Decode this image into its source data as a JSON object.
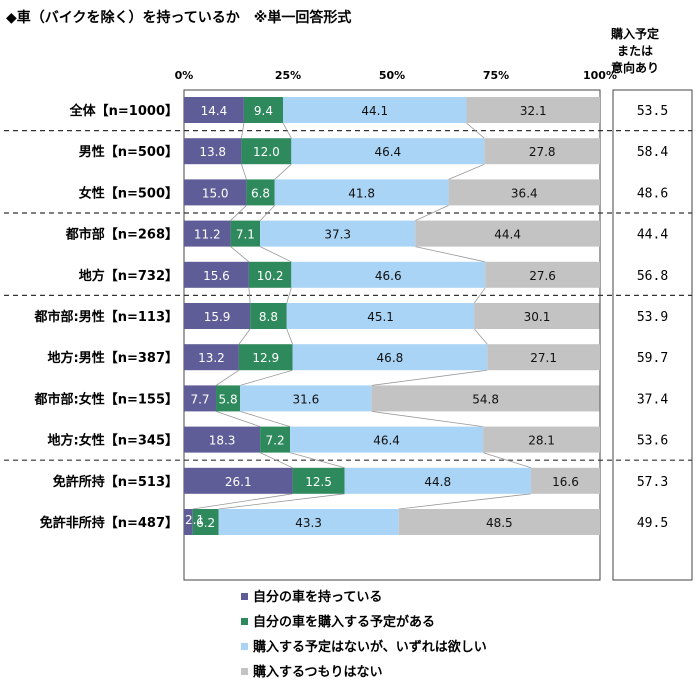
{
  "chart_data": {
    "type": "bar",
    "stacked": true,
    "orientation": "horizontal",
    "title": "◆車（バイクを除く）を持っているか　※単一回答形式",
    "xlim": [
      0,
      100
    ],
    "x_ticks": [
      "0%",
      "25%",
      "50%",
      "75%",
      "100%"
    ],
    "side_header": [
      "購入予定",
      "または",
      "意向あり"
    ],
    "categories": [
      "全体【n=1000】",
      "男性【n=500】",
      "女性【n=500】",
      "都市部【n=268】",
      "地方【n=732】",
      "都市部:男性【n=113】",
      "地方:男性【n=387】",
      "都市部:女性【n=155】",
      "地方:女性【n=345】",
      "免許所持【n=513】",
      "免許非所持【n=487】"
    ],
    "series": [
      {
        "name": "自分の車を持っている",
        "color": "#5f5d97",
        "values": [
          14.4,
          13.8,
          15.0,
          11.2,
          15.6,
          15.9,
          13.2,
          7.7,
          18.3,
          26.1,
          2.1
        ]
      },
      {
        "name": "自分の車を購入する予定がある",
        "color": "#2e8a5c",
        "values": [
          9.4,
          12.0,
          6.8,
          7.1,
          10.2,
          8.8,
          12.9,
          5.8,
          7.2,
          12.5,
          6.2
        ]
      },
      {
        "name": "購入する予定はないが、いずれは欲しい",
        "color": "#a9d4f5",
        "values": [
          44.1,
          46.4,
          41.8,
          37.3,
          46.6,
          45.1,
          46.8,
          31.6,
          46.4,
          44.8,
          43.3
        ]
      },
      {
        "name": "購入するつもりはない",
        "color": "#c3c3c3",
        "values": [
          32.1,
          27.8,
          36.4,
          44.4,
          27.6,
          30.1,
          27.1,
          54.8,
          28.1,
          16.6,
          48.5
        ]
      }
    ],
    "side_values": [
      "53.5",
      "58.4",
      "48.6",
      "44.4",
      "56.8",
      "53.9",
      "59.7",
      "37.4",
      "53.6",
      "57.3",
      "49.5"
    ],
    "group_separators_after": [
      0,
      2,
      4,
      8
    ],
    "legend_position": "bottom"
  }
}
